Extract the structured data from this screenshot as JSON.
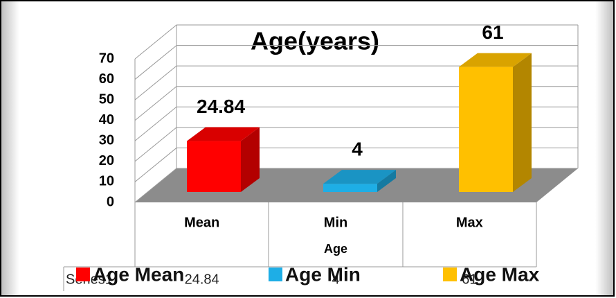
{
  "chart_data": {
    "type": "bar3d",
    "title": "Age(years)",
    "x_label": "Age",
    "categories": [
      "Mean",
      "Min",
      "Max"
    ],
    "values": [
      24.84,
      4,
      61
    ],
    "colors": [
      "#ff0000",
      "#1eaee6",
      "#ffc000"
    ],
    "legend": [
      "Age Mean",
      "Age Min",
      "Age Max"
    ],
    "table_row_label": "Series1",
    "ylim": [
      0,
      70
    ],
    "yticks": [
      0,
      10,
      20,
      30,
      40,
      50,
      60,
      70
    ],
    "grid": true
  }
}
